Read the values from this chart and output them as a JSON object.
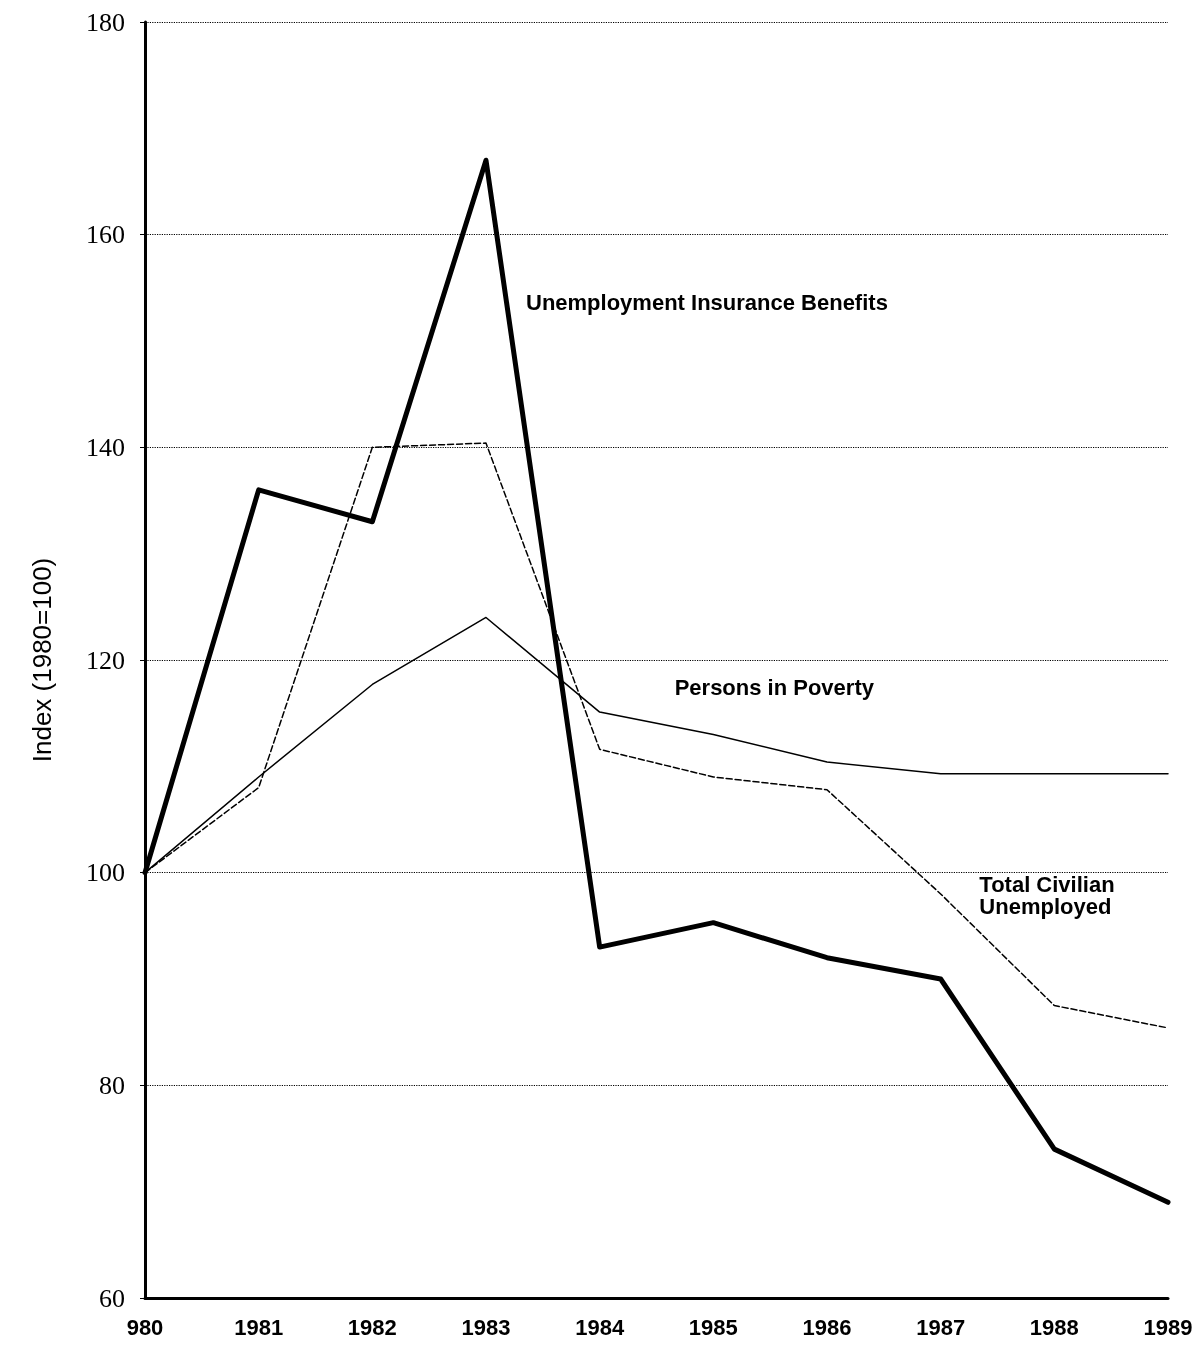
{
  "chart_data": {
    "type": "line",
    "ylabel": "Index (1980=100)",
    "categories": [
      "980",
      "1981",
      "1982",
      "1983",
      "1984",
      "1985",
      "1986",
      "1987",
      "1988",
      "1989"
    ],
    "series": [
      {
        "name": "Unemployment Insurance Benefits",
        "color": "#000000",
        "line_style": "solid",
        "values": [
          100,
          136,
          133,
          167,
          93,
          95.3,
          92,
          90,
          74,
          69
        ]
      },
      {
        "name": "Total Civilian Unemployed",
        "color": "#000000",
        "line_style": "dashed",
        "values": [
          100,
          108,
          140,
          140.4,
          111.6,
          109,
          107.8,
          98,
          87.5,
          85.4
        ]
      },
      {
        "name": "Persons in Poverty",
        "color": "#000000",
        "line_style": "solid",
        "values": [
          100,
          109,
          117.7,
          124,
          115.1,
          113,
          110.4,
          109.3,
          109.3,
          109.3
        ]
      }
    ],
    "ylim": [
      60,
      180
    ],
    "yticks": [
      60,
      80,
      100,
      120,
      140,
      160,
      180
    ],
    "grid": "y",
    "marker": "none"
  }
}
